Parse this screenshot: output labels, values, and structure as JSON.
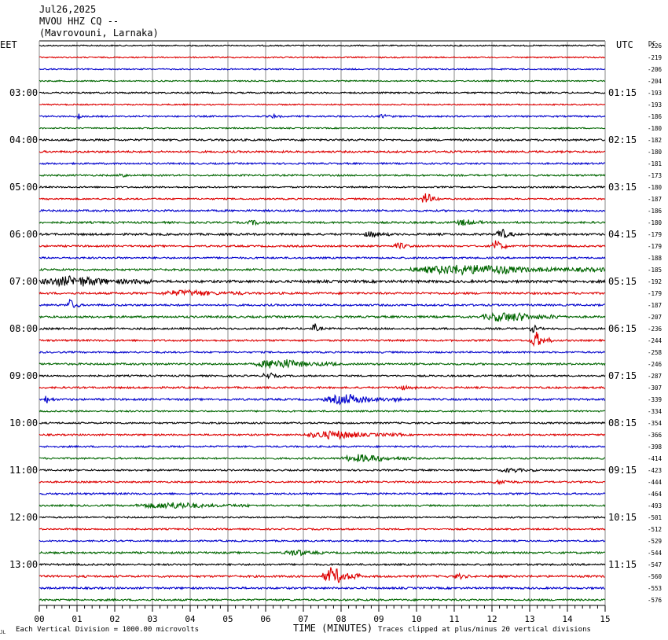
{
  "header": {
    "date": "Jul26,2025",
    "station": "MVOU HHZ CQ --",
    "location": "(Mavrovouni, Larnaka)"
  },
  "left_timezone": "EET",
  "right_timezone": "UTC",
  "dc_label": "DC",
  "footer": {
    "scale_note": "Each Vertical Division = 1000.00 microvolts",
    "xlabel": "TIME (MINUTES)",
    "clip_note": "Traces clipped at plus/minus 20 vertical divisions",
    "corner_mark": "JL"
  },
  "colors": [
    "#000000",
    "#dd0000",
    "#0000cc",
    "#006600"
  ],
  "chart_data": {
    "type": "line",
    "title": "MVOU HHZ CQ -- (Mavrovouni, Larnaka) Jul26,2025",
    "xlabel": "TIME (MINUTES)",
    "ylabel": "",
    "xlim": [
      0,
      15
    ],
    "x_ticks": [
      "00",
      "01",
      "02",
      "03",
      "04",
      "05",
      "06",
      "07",
      "08",
      "09",
      "10",
      "11",
      "12",
      "13",
      "14",
      "15"
    ],
    "rows": 48,
    "row_minutes": 15,
    "grid": true,
    "left_hour_labels": [
      {
        "row": 4,
        "label": "03:00"
      },
      {
        "row": 8,
        "label": "04:00"
      },
      {
        "row": 12,
        "label": "05:00"
      },
      {
        "row": 16,
        "label": "06:00"
      },
      {
        "row": 20,
        "label": "07:00"
      },
      {
        "row": 24,
        "label": "08:00"
      },
      {
        "row": 28,
        "label": "09:00"
      },
      {
        "row": 32,
        "label": "10:00"
      },
      {
        "row": 36,
        "label": "11:00"
      },
      {
        "row": 40,
        "label": "12:00"
      },
      {
        "row": 44,
        "label": "13:00"
      }
    ],
    "right_hour_labels": [
      {
        "row": 4,
        "label": "01:15"
      },
      {
        "row": 8,
        "label": "02:15"
      },
      {
        "row": 12,
        "label": "03:15"
      },
      {
        "row": 16,
        "label": "04:15"
      },
      {
        "row": 20,
        "label": "05:15"
      },
      {
        "row": 24,
        "label": "06:15"
      },
      {
        "row": 28,
        "label": "07:15"
      },
      {
        "row": 32,
        "label": "08:15"
      },
      {
        "row": 36,
        "label": "09:15"
      },
      {
        "row": 40,
        "label": "10:15"
      },
      {
        "row": 44,
        "label": "11:15"
      }
    ],
    "dc_offsets": [
      "-226",
      "-219",
      "-206",
      "-204",
      "-193",
      "-193",
      "-186",
      "-180",
      "-182",
      "-180",
      "-181",
      "-173",
      "-180",
      "-187",
      "-186",
      "-180",
      "-179",
      "-179",
      "-188",
      "-185",
      "-192",
      "-179",
      "-187",
      "-207",
      "-236",
      "-244",
      "-258",
      "-246",
      "-287",
      "-307",
      "-339",
      "-334",
      "-354",
      "-366",
      "-398",
      "-414",
      "-423",
      "-444",
      "-464",
      "-493",
      "-501",
      "-512",
      "-529",
      "-544",
      "-547",
      "-560",
      "-553",
      "-576"
    ],
    "noise_levels": [
      1,
      1,
      1,
      1,
      1.2,
      1,
      1.2,
      1,
      1.5,
      1.5,
      1.3,
      1.3,
      1.2,
      1.2,
      1.5,
      1.5,
      1.6,
      1.4,
      1.4,
      1.6,
      2,
      1.6,
      1.5,
      1.6,
      1.4,
      1.4,
      1.3,
      1.5,
      1.3,
      1.4,
      1.5,
      1.2,
      1.3,
      1.3,
      1.3,
      1.3,
      1.3,
      1.3,
      1.4,
      1.3,
      1.2,
      1.2,
      1.2,
      1.5,
      1.4,
      1.6,
      1.5,
      1.4
    ],
    "events": [
      {
        "row": 6,
        "start": 1.0,
        "end": 1.2,
        "amp": 3
      },
      {
        "row": 6,
        "start": 6.1,
        "end": 6.4,
        "amp": 2
      },
      {
        "row": 6,
        "start": 9.0,
        "end": 9.4,
        "amp": 2
      },
      {
        "row": 11,
        "start": 2.1,
        "end": 2.4,
        "amp": 3
      },
      {
        "row": 13,
        "start": 10.1,
        "end": 10.6,
        "amp": 6
      },
      {
        "row": 15,
        "start": 11.0,
        "end": 11.8,
        "amp": 3
      },
      {
        "row": 15,
        "start": 5.5,
        "end": 6.1,
        "amp": 2
      },
      {
        "row": 16,
        "start": 12.1,
        "end": 12.6,
        "amp": 6
      },
      {
        "row": 16,
        "start": 8.6,
        "end": 9.3,
        "amp": 3
      },
      {
        "row": 17,
        "start": 12.0,
        "end": 12.4,
        "amp": 7
      },
      {
        "row": 17,
        "start": 9.4,
        "end": 9.9,
        "amp": 3
      },
      {
        "row": 19,
        "start": 9.8,
        "end": 15.0,
        "amp": 5
      },
      {
        "row": 20,
        "start": 0.0,
        "end": 3.0,
        "amp": 5
      },
      {
        "row": 21,
        "start": 3.2,
        "end": 5.5,
        "amp": 3
      },
      {
        "row": 22,
        "start": 0.7,
        "end": 1.1,
        "amp": 6
      },
      {
        "row": 23,
        "start": 11.7,
        "end": 13.9,
        "amp": 5
      },
      {
        "row": 24,
        "start": 7.2,
        "end": 7.5,
        "amp": 5
      },
      {
        "row": 24,
        "start": 13.0,
        "end": 13.3,
        "amp": 4
      },
      {
        "row": 25,
        "start": 13.0,
        "end": 13.6,
        "amp": 9
      },
      {
        "row": 27,
        "start": 5.7,
        "end": 7.9,
        "amp": 5
      },
      {
        "row": 28,
        "start": 5.9,
        "end": 6.4,
        "amp": 3
      },
      {
        "row": 29,
        "start": 9.4,
        "end": 10.0,
        "amp": 2
      },
      {
        "row": 30,
        "start": 7.5,
        "end": 9.6,
        "amp": 5
      },
      {
        "row": 30,
        "start": 0.1,
        "end": 0.4,
        "amp": 4
      },
      {
        "row": 33,
        "start": 7.0,
        "end": 9.6,
        "amp": 4
      },
      {
        "row": 35,
        "start": 8.0,
        "end": 9.9,
        "amp": 4
      },
      {
        "row": 36,
        "start": 12.2,
        "end": 13.2,
        "amp": 2
      },
      {
        "row": 37,
        "start": 12.0,
        "end": 12.8,
        "amp": 2
      },
      {
        "row": 39,
        "start": 2.5,
        "end": 5.6,
        "amp": 3
      },
      {
        "row": 43,
        "start": 6.5,
        "end": 7.5,
        "amp": 3
      },
      {
        "row": 45,
        "start": 7.5,
        "end": 8.5,
        "amp": 10
      },
      {
        "row": 45,
        "start": 11.0,
        "end": 11.4,
        "amp": 3
      }
    ]
  }
}
